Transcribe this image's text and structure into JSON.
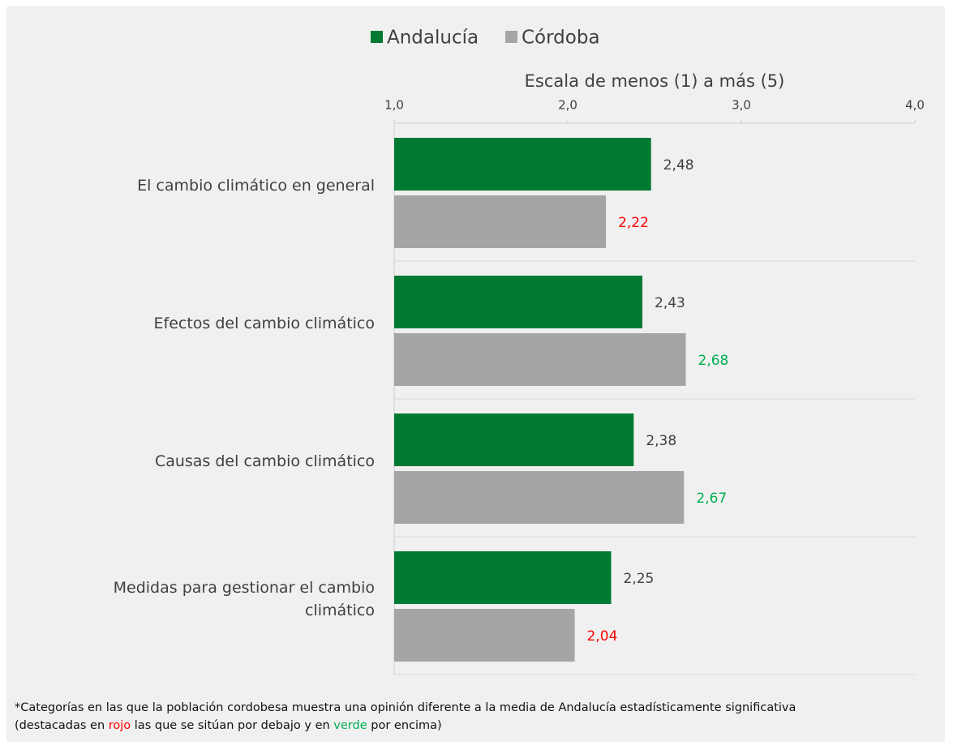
{
  "chart_data": {
    "type": "bar",
    "orientation": "horizontal",
    "x_axis_label": "Escala de menos (1) a más (5)",
    "categories": [
      "El cambio climático en general",
      "Efectos del cambio climático",
      "Causas del cambio climático",
      "Medidas para gestionar el cambio climático"
    ],
    "series": [
      {
        "name": "Andalucía",
        "color": "#007a33",
        "values": [
          2.48,
          2.43,
          2.38,
          2.25
        ],
        "value_labels": [
          "2,48",
          "2,43",
          "2,38",
          "2,25"
        ]
      },
      {
        "name": "Córdoba",
        "color": "#a5a5a5",
        "values": [
          2.22,
          2.68,
          2.67,
          2.04
        ],
        "value_labels": [
          "2,22",
          "2,68",
          "2,67",
          "2,04"
        ],
        "value_label_colors": [
          "#ff0000",
          "#00b050",
          "#00b050",
          "#ff0000"
        ]
      }
    ],
    "xlim": [
      1,
      4
    ],
    "xticks": [
      {
        "value": 1,
        "label": "1,0"
      },
      {
        "value": 2,
        "label": "2,0"
      },
      {
        "value": 3,
        "label": "3,0"
      },
      {
        "value": 4,
        "label": "4,0"
      }
    ],
    "legend": "top",
    "footnote": [
      "*Categorías en las que la población cordobesa muestra una opinión diferente a la media de Andalucía estadísticamente significativa",
      "(destacadas en ",
      "rojo",
      " las que se sitúan por debajo y en ",
      "verde",
      " por encima)"
    ]
  }
}
